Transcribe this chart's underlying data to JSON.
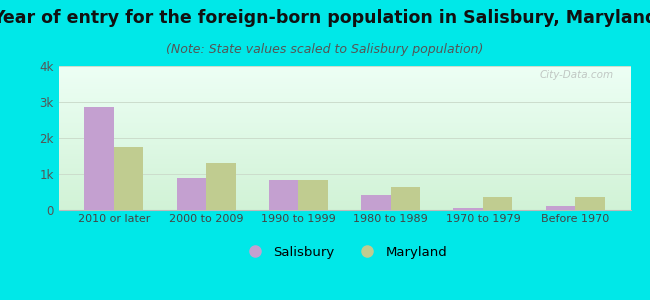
{
  "title": "Year of entry for the foreign-born population in Salisbury, Maryland",
  "subtitle": "(Note: State values scaled to Salisbury population)",
  "categories": [
    "2010 or later",
    "2000 to 2009",
    "1990 to 1999",
    "1980 to 1989",
    "1970 to 1979",
    "Before 1970"
  ],
  "salisbury_values": [
    2850,
    900,
    830,
    420,
    55,
    120
  ],
  "maryland_values": [
    1750,
    1300,
    820,
    650,
    370,
    360
  ],
  "salisbury_color": "#c4a0d0",
  "maryland_color": "#c0cc90",
  "background_outer": "#00e8e8",
  "ylim": [
    0,
    4000
  ],
  "yticks": [
    0,
    1000,
    2000,
    3000,
    4000
  ],
  "ytick_labels": [
    "0",
    "1k",
    "2k",
    "3k",
    "4k"
  ],
  "title_fontsize": 12.5,
  "subtitle_fontsize": 9,
  "legend_labels": [
    "Salisbury",
    "Maryland"
  ],
  "bar_width": 0.32,
  "grid_color": "#ccddcc",
  "watermark": "City-Data.com"
}
